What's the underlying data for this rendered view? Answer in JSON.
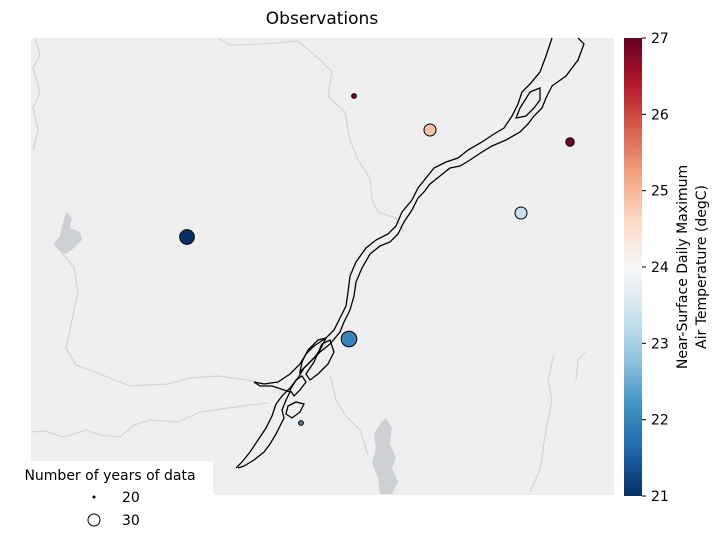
{
  "chart_data": {
    "type": "scatter",
    "title": "Observations",
    "colorbar": {
      "label_line1": "Near-Surface Daily Maximum",
      "label_line2": "Air Temperature (degC)",
      "range": [
        21,
        27
      ],
      "ticks": [
        {
          "value": 21,
          "label": "21"
        },
        {
          "value": 22,
          "label": "22"
        },
        {
          "value": 23,
          "label": "23"
        },
        {
          "value": 24,
          "label": "24"
        },
        {
          "value": 25,
          "label": "25"
        },
        {
          "value": 26,
          "label": "26"
        },
        {
          "value": 27,
          "label": "27"
        }
      ],
      "colormap": "RdBu_r"
    },
    "legend": {
      "title": "Number of years of data",
      "placement": "lower-left",
      "entries": [
        {
          "label": "20",
          "years": 20
        },
        {
          "label": "30",
          "years": 30
        }
      ]
    },
    "stations": [
      {
        "temp": 26.9,
        "years": 22
      },
      {
        "temp": 24.9,
        "years": 30
      },
      {
        "temp": 26.9,
        "years": 26
      },
      {
        "temp": 23.3,
        "years": 30
      },
      {
        "temp": 21.0,
        "years": 33
      },
      {
        "temp": 22.0,
        "years": 34
      },
      {
        "temp": 22.0,
        "years": 22
      }
    ],
    "colors": {
      "map_background": "#efefef",
      "land_borders": "#d4d4d4",
      "lakes": "#cdd1d5",
      "river_outline": "#000000"
    }
  }
}
